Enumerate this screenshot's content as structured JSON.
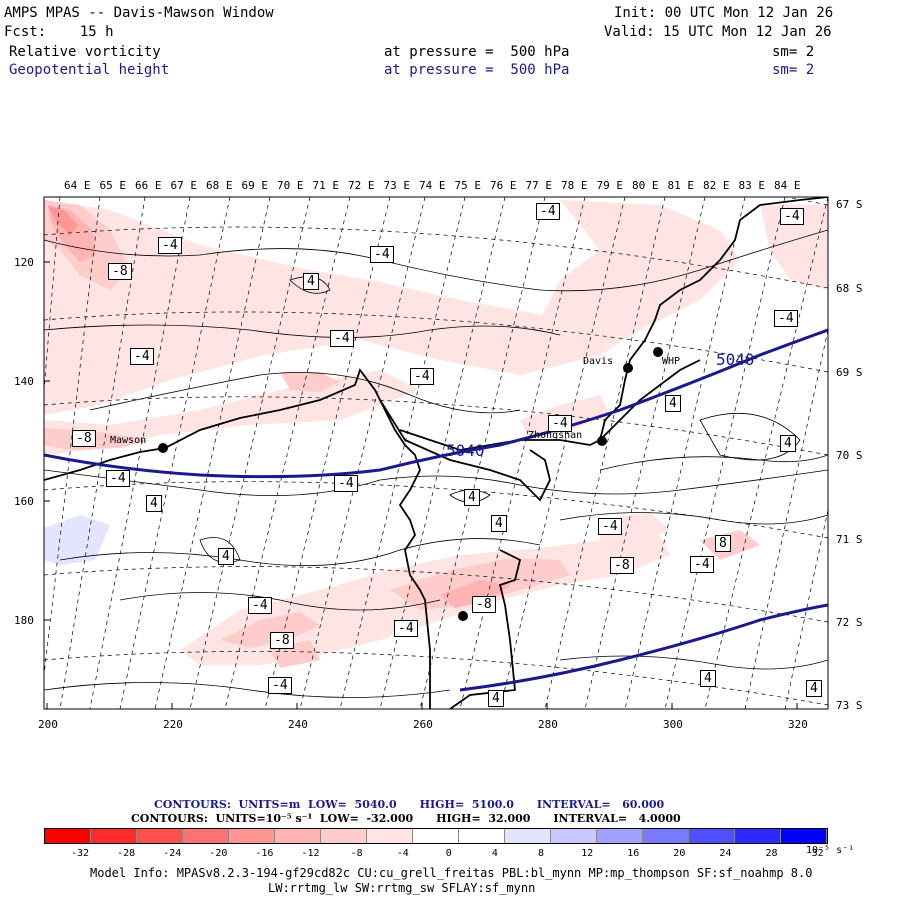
{
  "header": {
    "title": "AMPS MPAS -- Davis-Mawson Window",
    "forecast": "Fcst:    15 h",
    "init": "Init: 00 UTC Mon 12 Jan 26",
    "valid": "Valid: 15 UTC Mon 12 Jan 26",
    "field1": {
      "name": "Relative vorticity",
      "level": "at pressure =  500 hPa",
      "sm": "sm= 2"
    },
    "field2": {
      "name": "Geopotential height",
      "level": "at pressure =  500 hPa",
      "sm": "sm= 2"
    }
  },
  "map": {
    "lon_labels": [
      "64 E",
      "65 E",
      "66 E",
      "67 E",
      "68 E",
      "69 E",
      "70 E",
      "71 E",
      "72 E",
      "73 E",
      "74 E",
      "75 E",
      "76 E",
      "77 E",
      "78 E",
      "79 E",
      "80 E",
      "81 E",
      "82 E",
      "83 E",
      "84 E"
    ],
    "lat_labels": [
      "67 S",
      "68 S",
      "69 S",
      "70 S",
      "71 S",
      "72 S",
      "73 S"
    ],
    "y_ticks": [
      "120",
      "140",
      "160",
      "180"
    ],
    "x_ticks": [
      "200",
      "220",
      "240",
      "260",
      "280",
      "300",
      "320"
    ],
    "stations": [
      "Mawson",
      "Davis",
      "WHP",
      "Zhongshan"
    ],
    "height_contour_labels": [
      "5040",
      "5040"
    ],
    "vort_labels_neg": [
      "-4",
      "-4",
      "-4",
      "-4",
      "-4",
      "-4",
      "-4",
      "-4",
      "-4",
      "-4",
      "-4",
      "-4",
      "-4",
      "-4",
      "-4",
      "-4",
      "-8",
      "-8",
      "-8",
      "-8",
      "-8"
    ],
    "vort_labels_pos": [
      "4",
      "4",
      "4",
      "4",
      "4",
      "4",
      "4",
      "4",
      "4",
      "4",
      "8"
    ]
  },
  "legend": {
    "line1": "CONTOURS:  UNITS=m  LOW=  5040.0      HIGH=  5100.0      INTERVAL=   60.000",
    "line2": "CONTOURS:  UNITS=10⁻⁵ s⁻¹  LOW=  -32.000      HIGH=  32.000      INTERVAL=   4.0000",
    "colorbar_labels": [
      "-32",
      "-28",
      "-24",
      "-20",
      "-16",
      "-12",
      "-8",
      "-4",
      "0",
      "4",
      "8",
      "12",
      "16",
      "20",
      "24",
      "28",
      "32"
    ],
    "colorbar_unit": "10⁻⁵ s⁻¹",
    "colorbar_colors": [
      "#ff0000",
      "#ff2a2a",
      "#ff5050",
      "#ff7272",
      "#ff9696",
      "#ffb4b4",
      "#ffcccc",
      "#ffe4e4",
      "#ffffff",
      "#ffffff",
      "#e4e4ff",
      "#c8c8ff",
      "#a0a0ff",
      "#7a7aff",
      "#5050ff",
      "#2a2aff",
      "#0000ff"
    ]
  },
  "footer": {
    "line1": "Model Info: MPASv8.2.3-194-gf29cd82c CU:cu_grell_freitas PBL:bl_mynn MP:mp_thompson SF:sf_noahmp 8.0",
    "line2": "LW:rrtmg_lw SW:rrtmg_sw SFLAY:sf_mynn"
  },
  "colors": {
    "height_contour": "#1a1a8c",
    "vort_pos": "#ffcccc",
    "vort_pos_strong": "#ff9696",
    "vort_neg": "#e4e4ff"
  }
}
